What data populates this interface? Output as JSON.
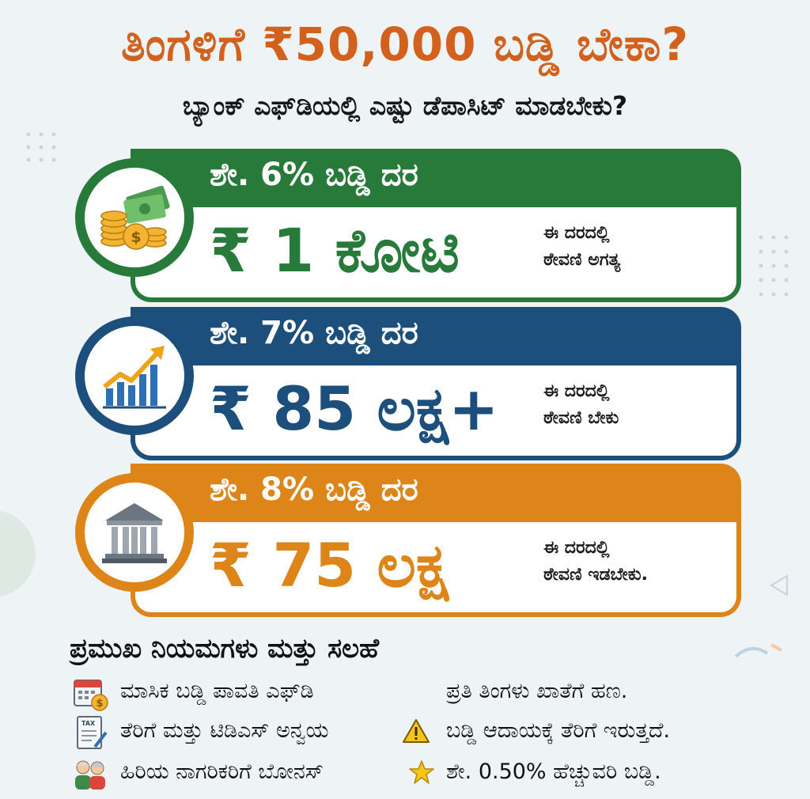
{
  "header": {
    "title": "ತಿಂಗಳಿಗೆ ₹50,000 ಬಡ್ಡಿ ಬೇಕಾ?",
    "subtitle": "ಬ್ಯಾಂಕ್ ಎಫ್‌ಡಿಯಲ್ಲಿ ಎಷ್ಟು ಡೆಪಾಸಿಟ್ ಮಾಡಬೇಕು?"
  },
  "cards": [
    {
      "rate": "ಶೇ. 6% ಬಡ್ಡಿ ದರ",
      "amount": "₹ 1 ಕೋಟಿ",
      "note_line1": "ಈ ದರದಲ್ಲಿ",
      "note_line2": "ಠೇವಣಿ ಅಗತ್ಯ",
      "icon": "money-coins-icon",
      "color": "#287a3b"
    },
    {
      "rate": "ಶೇ. 7% ಬಡ್ಡಿ ದರ",
      "amount": "₹ 85 ಲಕ್ಷ+",
      "note_line1": "ಈ ದರದಲ್ಲಿ",
      "note_line2": "ಠೇವಣಿ ಬೇಕು",
      "icon": "growth-chart-icon",
      "color": "#1d4f7c"
    },
    {
      "rate": "ಶೇ. 8% ಬಡ್ಡಿ ದರ",
      "amount": "₹ 75 ಲಕ್ಷ",
      "note_line1": "ಈ ದರದಲ್ಲಿ",
      "note_line2": "ಠೇವಣಿ ಇಡಬೇಕು.",
      "icon": "bank-building-icon",
      "color": "#dd8519"
    }
  ],
  "rules": {
    "title": "ಪ್ರಮುಖ ನಿಯಮಗಳು ಮತ್ತು ಸಲಹೆ",
    "items": [
      {
        "label": "ಮಾಸಿಕ ಬಡ್ಡಿ ಪಾವತಿ ಎಫ್‌ಡಿ",
        "value": "ಪ್ರತಿ ತಿಂಗಳು ಖಾತೆಗೆ ಹಣ.",
        "icon": "calendar-coin-icon"
      },
      {
        "label": "ತೆರಿಗೆ ಮತ್ತು ಟಿಡಿಎಸ್ ಅನ್ವಯ",
        "value": "ಬಡ್ಡಿ ಆದಾಯಕ್ಕೆ ತೆರಿಗೆ ಇರುತ್ತದೆ.",
        "icon": "tax-form-icon",
        "badge_icon": "warning-icon"
      },
      {
        "label": "ಹಿರಿಯ ನಾಗರಿಕರಿಗೆ ಬೋನಸ್",
        "value": "ಶೇ. 0.50% ಹೆಚ್ಚುವರಿ ಬಡ್ಡಿ.",
        "icon": "senior-citizens-icon",
        "badge_icon": "star-icon"
      }
    ]
  }
}
